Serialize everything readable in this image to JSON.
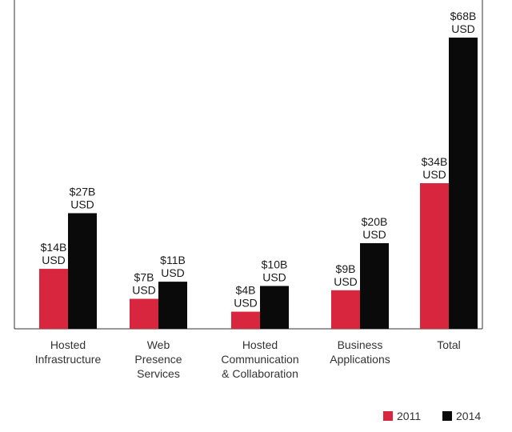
{
  "chart_data": {
    "type": "bar",
    "categories": [
      [
        "Hosted",
        "Infrastructure"
      ],
      [
        "Web",
        "Presence",
        "Services"
      ],
      [
        "Hosted",
        "Communication",
        "& Collaboration"
      ],
      [
        "Business",
        "Applications"
      ],
      [
        "Total"
      ]
    ],
    "series": [
      {
        "name": "2011",
        "color": "#d7263d",
        "values": [
          14,
          7,
          4,
          9,
          34
        ],
        "labels": [
          [
            "$14B",
            "USD"
          ],
          [
            "$7B",
            "USD"
          ],
          [
            "$4B",
            "USD"
          ],
          [
            "$9B",
            "USD"
          ],
          [
            "$34B",
            "USD"
          ]
        ]
      },
      {
        "name": "2014",
        "color": "#0a0a0a",
        "values": [
          27,
          11,
          10,
          20,
          68
        ],
        "labels": [
          [
            "$27B",
            "USD"
          ],
          [
            "$11B",
            "USD"
          ],
          [
            "$10B",
            "USD"
          ],
          [
            "$20B",
            "USD"
          ],
          [
            "$68B",
            "USD"
          ]
        ]
      }
    ],
    "ylim": [
      0,
      68
    ],
    "grid": false,
    "legend_position": "bottom-right",
    "title": "",
    "xlabel": "",
    "ylabel": ""
  }
}
